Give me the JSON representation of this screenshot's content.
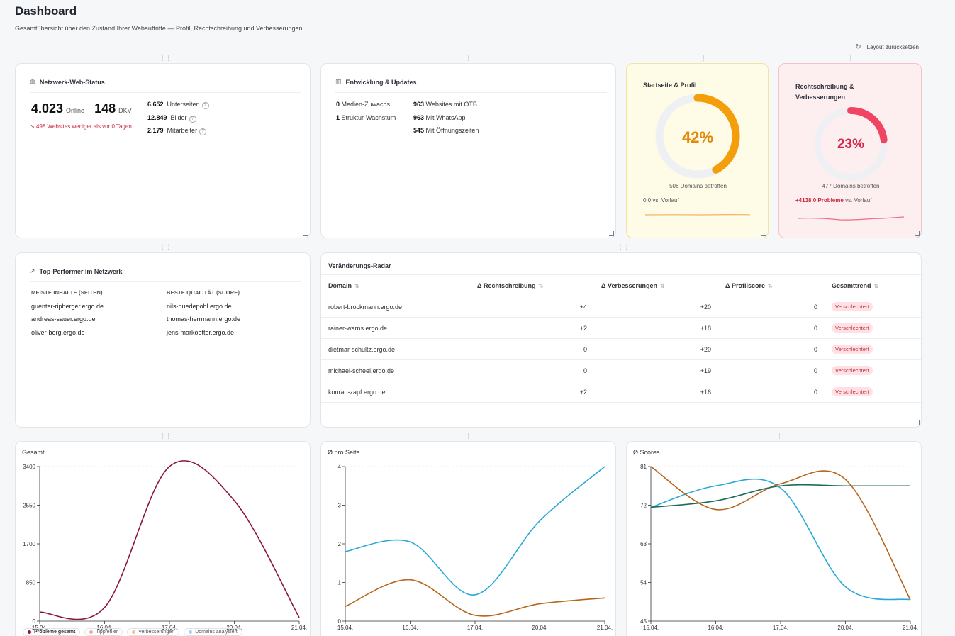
{
  "page": {
    "title": "Dashboard",
    "subtitle": "Gesamtübersicht über den Zustand Ihrer Webauftritte — Profil, Rechtschreibung und Verbesserungen.",
    "reset_label": "Layout zurücksetzen"
  },
  "network": {
    "title": "Netzwerk-Web-Status",
    "online_value": "4.023",
    "online_label": "Online",
    "dkv_value": "148",
    "dkv_label": "DKV",
    "note": "498 Websites weniger als vor 0 Tagen",
    "stats": [
      {
        "value": "6.652",
        "label": "Unterseiten"
      },
      {
        "value": "12.849",
        "label": "Bilder"
      },
      {
        "value": "2.179",
        "label": "Mitarbeiter"
      }
    ]
  },
  "updates": {
    "title": "Entwicklung & Updates",
    "left": [
      {
        "value": "0",
        "label": "Medien-Zuwachs"
      },
      {
        "value": "1",
        "label": "Struktur-Wachstum"
      }
    ],
    "right": [
      {
        "value": "963",
        "label": "Websites mit OTB"
      },
      {
        "value": "963",
        "label": "Mit WhatsApp"
      },
      {
        "value": "545",
        "label": "Mit Öffnungszeiten"
      }
    ]
  },
  "profile": {
    "title": "Startseite & Profil",
    "percent": 42,
    "percent_label": "42%",
    "domains": "506 Domains betroffen",
    "trend": "0.0 vs. Vorlauf",
    "color": "#f59e0b"
  },
  "spelling": {
    "title_1": "Rechtschreibung &",
    "title_2": "Verbesserungen",
    "percent": 23,
    "percent_label": "23%",
    "domains": "477 Domains betroffen",
    "trend_value": "+4138.0 Probleme",
    "trend_suffix": "vs. Vorlauf",
    "color": "#ef4464"
  },
  "top": {
    "title": "Top-Performer im Netzwerk",
    "col1_head": "MEISTE INHALTE (SEITEN)",
    "col2_head": "BESTE QUALITÄT (SCORE)",
    "col1": [
      "guenter-ripberger.ergo.de",
      "andreas-sauer.ergo.de",
      "oliver-berg.ergo.de"
    ],
    "col2": [
      "nils-huedepohl.ergo.de",
      "thomas-herrmann.ergo.de",
      "jens-markoetter.ergo.de"
    ]
  },
  "radar": {
    "title": "Veränderungs-Radar",
    "headers": [
      "Domain",
      "Δ Rechtschreibung",
      "Δ Verbesserungen",
      "Δ Profilscore",
      "Gesamttrend"
    ],
    "rows": [
      {
        "domain": "robert-brockmann.ergo.de",
        "spell": "+4",
        "impr": "+20",
        "score": "0",
        "trend": "Verschlechtert"
      },
      {
        "domain": "rainer-warns.ergo.de",
        "spell": "+2",
        "impr": "+18",
        "score": "0",
        "trend": "Verschlechtert"
      },
      {
        "domain": "dietmar-schultz.ergo.de",
        "spell": "0",
        "impr": "+20",
        "score": "0",
        "trend": "Verschlechtert"
      },
      {
        "domain": "michael-scheel.ergo.de",
        "spell": "0",
        "impr": "+19",
        "score": "0",
        "trend": "Verschlechtert"
      },
      {
        "domain": "konrad-zapf.ergo.de",
        "spell": "+2",
        "impr": "+16",
        "score": "0",
        "trend": "Verschlechtert"
      }
    ]
  },
  "chart_data": [
    {
      "type": "line",
      "title": "Gesamt",
      "x": [
        "15.04.",
        "16.04.",
        "17.04.",
        "20.04.",
        "21.04."
      ],
      "ylim": [
        0,
        3400
      ],
      "yticks": [
        0,
        850,
        1700,
        2550,
        3400
      ],
      "series": [
        {
          "name": "Probleme gesamt",
          "color": "#8b1538",
          "values": [
            200,
            300,
            3400,
            2650,
            80
          ]
        }
      ],
      "legend": [
        "Probleme gesamt",
        "Tippfehler",
        "Verbesserungen",
        "Domains analysiert"
      ],
      "legend_colors": [
        "#8b1538",
        "#f3a6a6",
        "#f6c19a",
        "#a7d3ea"
      ]
    },
    {
      "type": "line",
      "title": "Ø pro Seite",
      "x": [
        "15.04.",
        "16.04.",
        "17.04.",
        "20.04.",
        "21.04."
      ],
      "ylim": [
        0,
        4
      ],
      "yticks": [
        0,
        1,
        2,
        3,
        4
      ],
      "series": [
        {
          "color": "#29a8d8",
          "values": [
            1.8,
            2.05,
            0.68,
            2.6,
            4.0
          ]
        },
        {
          "color": "#b5651d",
          "values": [
            0.38,
            1.07,
            0.15,
            0.45,
            0.6
          ]
        }
      ]
    },
    {
      "type": "line",
      "title": "Ø Scores",
      "x": [
        "15.04.",
        "16.04.",
        "17.04.",
        "20.04.",
        "21.04."
      ],
      "ylim": [
        45,
        81
      ],
      "yticks": [
        45,
        54,
        63,
        72,
        81
      ],
      "series": [
        {
          "color": "#29a8d8",
          "values": [
            71.5,
            76.5,
            76,
            53,
            50
          ]
        },
        {
          "color": "#b5651d",
          "values": [
            81,
            71,
            77,
            78,
            50
          ]
        },
        {
          "color": "#1f6b5a",
          "values": [
            71.5,
            73,
            76.5,
            76.5,
            76.5
          ]
        }
      ]
    }
  ]
}
